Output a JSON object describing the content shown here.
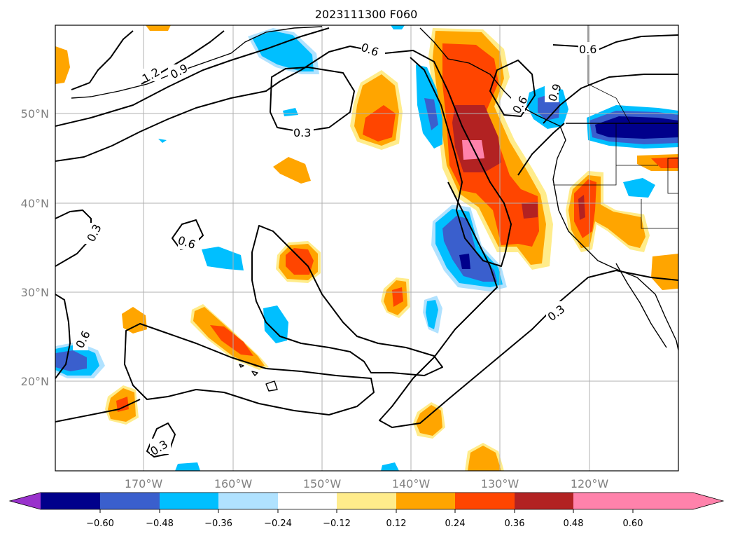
{
  "title": "2023111300 F060",
  "lat_labels": [
    "50°N",
    "40°N",
    "30°N",
    "20°N"
  ],
  "lon_labels": [
    "170°W",
    "160°W",
    "150°W",
    "140°W",
    "130°W",
    "120°W"
  ],
  "colorbar": {
    "tick_labels": [
      "−0.60",
      "−0.48",
      "−0.36",
      "−0.24",
      "−0.12",
      "0.12",
      "0.24",
      "0.36",
      "0.48",
      "0.60"
    ],
    "colors": [
      "#9932cc",
      "#00008b",
      "#3a5fcd",
      "#00bfff",
      "#b0e2ff",
      "#ffffff",
      "#ffec8b",
      "#ffa500",
      "#ff4500",
      "#b22222",
      "#ff82ab"
    ]
  },
  "contour_labels": [
    "1.2",
    "0.9",
    "0.6",
    "0.3",
    "0.6",
    "0.6",
    "0.3",
    "0.6",
    "0.9",
    "0.6",
    "0.3",
    "0.3"
  ]
}
